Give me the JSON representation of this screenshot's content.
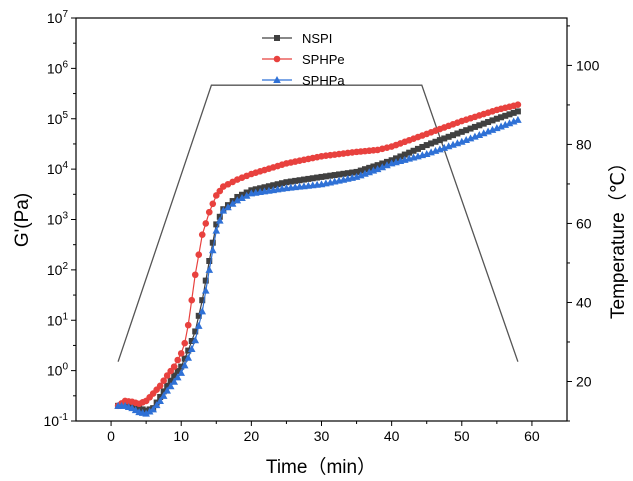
{
  "chart_data": {
    "type": "line",
    "xlabel": "Time（min）",
    "ylabel_left": "G'(Pa)",
    "ylabel_right": "Temperature（℃）",
    "xlim": [
      -5,
      65
    ],
    "xticks": [
      0,
      10,
      20,
      30,
      40,
      50,
      60
    ],
    "ylim_left": [
      0.1,
      10000000
    ],
    "yscale_left": "log",
    "yticks_left": [
      {
        "base": "10",
        "exp": "-1",
        "value": 0.1
      },
      {
        "base": "10",
        "exp": "0",
        "value": 1
      },
      {
        "base": "10",
        "exp": "1",
        "value": 10
      },
      {
        "base": "10",
        "exp": "2",
        "value": 100
      },
      {
        "base": "10",
        "exp": "3",
        "value": 1000
      },
      {
        "base": "10",
        "exp": "4",
        "value": 10000
      },
      {
        "base": "10",
        "exp": "5",
        "value": 100000
      },
      {
        "base": "10",
        "exp": "6",
        "value": 1000000
      },
      {
        "base": "10",
        "exp": "7",
        "value": 10000000
      }
    ],
    "ylim_right": [
      10,
      112
    ],
    "yticks_right": [
      20,
      40,
      60,
      80,
      100
    ],
    "legend_position": "top-center",
    "series": [
      {
        "name": "NSPI",
        "color": "#404040",
        "marker": "square",
        "x": [
          1,
          2,
          3,
          4,
          5,
          6,
          7,
          8,
          9,
          10,
          11,
          12,
          13,
          14,
          15,
          16,
          18,
          20,
          25,
          30,
          35,
          38,
          40,
          45,
          50,
          55,
          58
        ],
        "y": [
          0.2,
          0.21,
          0.2,
          0.18,
          0.16,
          0.18,
          0.3,
          0.5,
          0.8,
          1.2,
          2.5,
          6,
          25,
          150,
          800,
          1600,
          2800,
          3800,
          5500,
          7000,
          8800,
          12000,
          15000,
          30000,
          55000,
          100000,
          140000
        ]
      },
      {
        "name": "SPHPe",
        "color": "#e8413e",
        "marker": "circle",
        "x": [
          1,
          2,
          3,
          4,
          5,
          6,
          7,
          8,
          9,
          10,
          10.5,
          11,
          11.5,
          12,
          12.5,
          13,
          14,
          15,
          16,
          18,
          20,
          25,
          30,
          35,
          38,
          40,
          45,
          50,
          55,
          58
        ],
        "y": [
          0.2,
          0.25,
          0.24,
          0.22,
          0.25,
          0.35,
          0.5,
          0.8,
          1.2,
          2.2,
          3.5,
          8,
          25,
          80,
          200,
          500,
          1400,
          3000,
          4500,
          6200,
          8000,
          13000,
          18000,
          22000,
          24000,
          28000,
          50000,
          90000,
          150000,
          190000
        ]
      },
      {
        "name": "SPHPa",
        "color": "#2f71d6",
        "marker": "triangle",
        "x": [
          1,
          2,
          3,
          4,
          5,
          6,
          7,
          8,
          9,
          10,
          11,
          12,
          13,
          14,
          15,
          16,
          18,
          20,
          25,
          30,
          35,
          38,
          40,
          45,
          50,
          55,
          58
        ],
        "y": [
          0.2,
          0.2,
          0.18,
          0.15,
          0.14,
          0.17,
          0.25,
          0.4,
          0.6,
          0.9,
          1.8,
          4,
          15,
          100,
          600,
          1500,
          2400,
          3300,
          4200,
          5000,
          7000,
          10000,
          13000,
          20000,
          35000,
          65000,
          95000
        ]
      },
      {
        "name": "",
        "color": "#555555",
        "marker": "none",
        "axis": "right",
        "x": [
          1,
          14.3,
          44.3,
          58
        ],
        "y": [
          25,
          95,
          95,
          25
        ]
      }
    ]
  }
}
